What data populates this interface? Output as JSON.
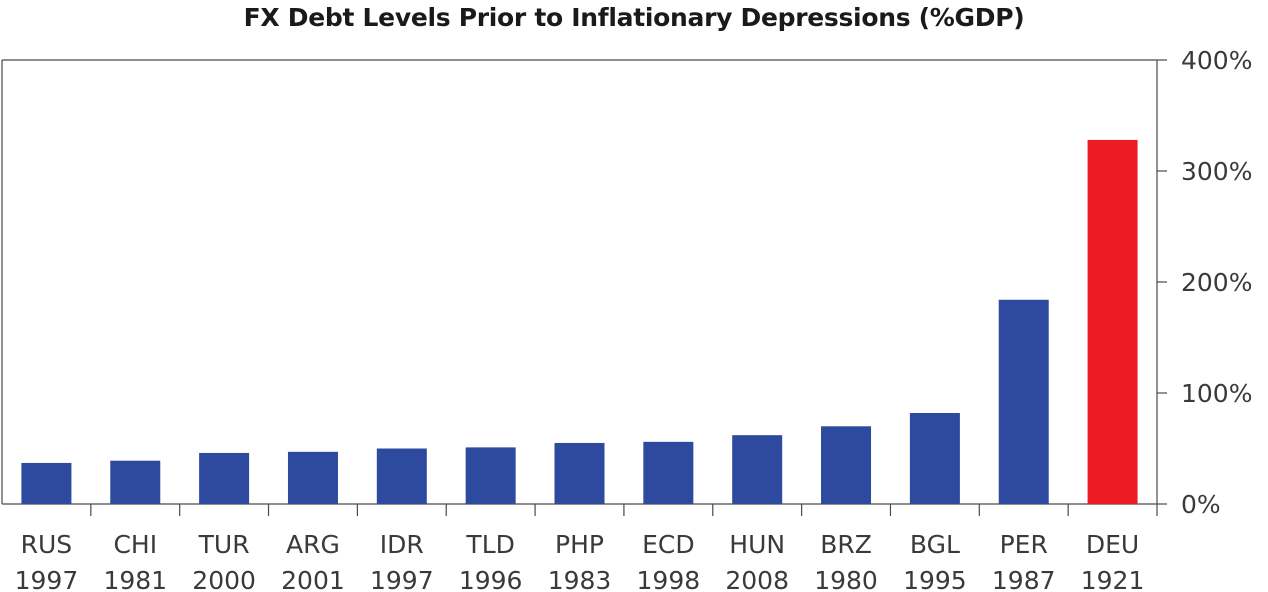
{
  "chart_data": {
    "type": "bar",
    "title": "FX Debt Levels Prior to Inflationary Depressions (%GDP)",
    "xlabel": "",
    "ylabel": "",
    "categories": [
      [
        "RUS",
        "1997"
      ],
      [
        "CHI",
        "1981"
      ],
      [
        "TUR",
        "2000"
      ],
      [
        "ARG",
        "2001"
      ],
      [
        "IDR",
        "1997"
      ],
      [
        "TLD",
        "1996"
      ],
      [
        "PHP",
        "1983"
      ],
      [
        "ECD",
        "1998"
      ],
      [
        "HUN",
        "2008"
      ],
      [
        "BRZ",
        "1980"
      ],
      [
        "BGL",
        "1995"
      ],
      [
        "PER",
        "1987"
      ],
      [
        "DEU",
        "1921"
      ]
    ],
    "values": [
      37,
      39,
      46,
      47,
      50,
      51,
      55,
      56,
      62,
      70,
      82,
      184,
      328
    ],
    "colors": [
      "#2e4a9e",
      "#2e4a9e",
      "#2e4a9e",
      "#2e4a9e",
      "#2e4a9e",
      "#2e4a9e",
      "#2e4a9e",
      "#2e4a9e",
      "#2e4a9e",
      "#2e4a9e",
      "#2e4a9e",
      "#2e4a9e",
      "#ed1c24"
    ],
    "ylim": [
      0,
      400
    ],
    "yticks": [
      0,
      100,
      200,
      300,
      400
    ],
    "ytick_labels": [
      "0%",
      "100%",
      "200%",
      "300%",
      "400%"
    ],
    "y_axis_side": "right",
    "grid": false,
    "legend": "none"
  }
}
